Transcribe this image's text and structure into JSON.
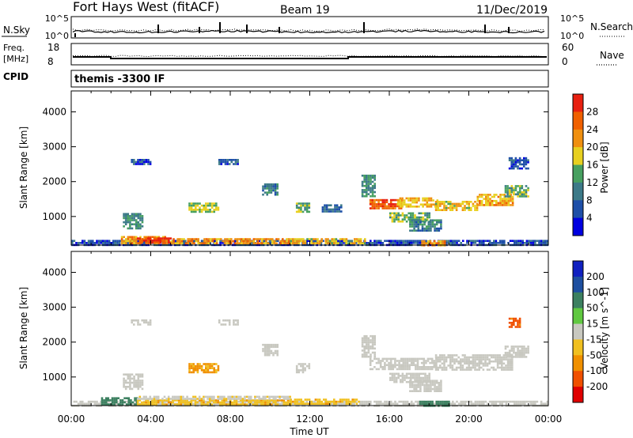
{
  "header": {
    "station": "Fort Hays West (fitACF)",
    "beam": "Beam 19",
    "date": "11/Dec/2019"
  },
  "aux_panels": {
    "nsky_label": "N.Sky",
    "nsky_ticks": [
      "10^5",
      "10^0"
    ],
    "nsearch_label": "N.Search",
    "nsearch_ticks": [
      "10^5",
      "10^0"
    ],
    "freq_label": "Freq.",
    "freq_unit": "[MHz]",
    "freq_ticks": [
      "18",
      "8"
    ],
    "nave_label": "Nave",
    "nave_ticks": [
      "60",
      "0"
    ],
    "cpid_label": "CPID",
    "cpid_value": "themis -3300 IF"
  },
  "colors": {
    "power_scale": [
      "#0000e0",
      "#1e4fa8",
      "#3c7a88",
      "#47a060",
      "#e8d020",
      "#f09010",
      "#f06000",
      "#e82010"
    ],
    "velocity_scale": [
      "#e00000",
      "#f05000",
      "#f09000",
      "#f0c020",
      "#c8c8c0",
      "#60c840",
      "#3c8060",
      "#1e4fa0",
      "#1020c0"
    ],
    "trace": "#000000"
  },
  "chart_data": [
    {
      "type": "heatmap",
      "name": "power",
      "ylabel": "Slant Range [km]",
      "yticks": [
        "1000",
        "2000",
        "3000",
        "4000"
      ],
      "ylim": [
        180,
        4600
      ],
      "colorbar_label": "Power [dB]",
      "colorbar_ticks": [
        "4",
        "8",
        "12",
        "16",
        "20",
        "24",
        "28"
      ],
      "colorbar_range": [
        0,
        32
      ],
      "regions": [
        {
          "t": [
            0.0,
            24.0
          ],
          "r": [
            180,
            330
          ],
          "v": 6
        },
        {
          "t": [
            2.5,
            4.8
          ],
          "r": [
            220,
            440
          ],
          "v": 22
        },
        {
          "t": [
            3.3,
            5.0
          ],
          "r": [
            230,
            400
          ],
          "v": 28
        },
        {
          "t": [
            5.0,
            11.0
          ],
          "r": [
            230,
            380
          ],
          "v": 22
        },
        {
          "t": [
            11.0,
            14.8
          ],
          "r": [
            220,
            380
          ],
          "v": 19
        },
        {
          "t": [
            2.6,
            3.6
          ],
          "r": [
            650,
            1100
          ],
          "v": 12
        },
        {
          "t": [
            5.9,
            7.4
          ],
          "r": [
            1150,
            1400
          ],
          "v": 16
        },
        {
          "t": [
            9.6,
            10.4
          ],
          "r": [
            1650,
            1950
          ],
          "v": 10
        },
        {
          "t": [
            11.3,
            12.0
          ],
          "r": [
            1150,
            1400
          ],
          "v": 14
        },
        {
          "t": [
            12.6,
            13.6
          ],
          "r": [
            1150,
            1350
          ],
          "v": 8
        },
        {
          "t": [
            14.6,
            15.3
          ],
          "r": [
            1600,
            2200
          ],
          "v": 12
        },
        {
          "t": [
            15.0,
            16.6
          ],
          "r": [
            1250,
            1500
          ],
          "v": 26
        },
        {
          "t": [
            16.4,
            18.4
          ],
          "r": [
            1300,
            1550
          ],
          "v": 20
        },
        {
          "t": [
            16.0,
            18.0
          ],
          "r": [
            880,
            1120
          ],
          "v": 14
        },
        {
          "t": [
            17.0,
            18.6
          ],
          "r": [
            620,
            920
          ],
          "v": 11
        },
        {
          "t": [
            18.3,
            20.4
          ],
          "r": [
            1200,
            1450
          ],
          "v": 19
        },
        {
          "t": [
            20.4,
            22.2
          ],
          "r": [
            1350,
            1650
          ],
          "v": 21
        },
        {
          "t": [
            21.8,
            23.0
          ],
          "r": [
            1550,
            1900
          ],
          "v": 14
        },
        {
          "t": [
            3.0,
            4.0
          ],
          "r": [
            2500,
            2650
          ],
          "v": 6
        },
        {
          "t": [
            7.4,
            8.4
          ],
          "r": [
            2500,
            2650
          ],
          "v": 6
        },
        {
          "t": [
            17.5,
            18.8
          ],
          "r": [
            180,
            320
          ],
          "v": 22
        },
        {
          "t": [
            22.0,
            23.0
          ],
          "r": [
            2350,
            2700
          ],
          "v": 6
        }
      ]
    },
    {
      "type": "heatmap",
      "name": "velocity",
      "ylabel": "Slant Range [km]",
      "yticks": [
        "1000",
        "2000",
        "3000",
        "4000"
      ],
      "ylim": [
        180,
        4600
      ],
      "xlabel": "Time UT",
      "xticks": [
        "00:00",
        "04:00",
        "08:00",
        "12:00",
        "16:00",
        "20:00",
        "00:00"
      ],
      "xlim": [
        0,
        24
      ],
      "colorbar_label": "Velocity [m s^-1]",
      "colorbar_ticks": [
        "200",
        "100",
        "50",
        "15",
        "-15",
        "-50",
        "-100",
        "-200"
      ],
      "colorbar_range": [
        -250,
        250
      ],
      "regions": [
        {
          "t": [
            0.0,
            24.0
          ],
          "r": [
            180,
            320
          ],
          "v": 0
        },
        {
          "t": [
            1.5,
            3.3
          ],
          "r": [
            220,
            420
          ],
          "v": 40
        },
        {
          "t": [
            3.3,
            11.0
          ],
          "r": [
            230,
            360
          ],
          "v": -25
        },
        {
          "t": [
            3.3,
            11.0
          ],
          "r": [
            360,
            460
          ],
          "v": -10
        },
        {
          "t": [
            11.0,
            14.5
          ],
          "r": [
            220,
            380
          ],
          "v": -25
        },
        {
          "t": [
            2.6,
            3.6
          ],
          "r": [
            650,
            1100
          ],
          "v": 0
        },
        {
          "t": [
            5.9,
            7.4
          ],
          "r": [
            1150,
            1400
          ],
          "v": -35
        },
        {
          "t": [
            9.6,
            10.4
          ],
          "r": [
            1650,
            1950
          ],
          "v": 0
        },
        {
          "t": [
            11.3,
            12.0
          ],
          "r": [
            1150,
            1400
          ],
          "v": 0
        },
        {
          "t": [
            14.6,
            15.3
          ],
          "r": [
            1600,
            2200
          ],
          "v": 0
        },
        {
          "t": [
            15.0,
            18.4
          ],
          "r": [
            1250,
            1550
          ],
          "v": 0
        },
        {
          "t": [
            16.0,
            18.0
          ],
          "r": [
            880,
            1120
          ],
          "v": 0
        },
        {
          "t": [
            17.0,
            18.6
          ],
          "r": [
            620,
            920
          ],
          "v": 0
        },
        {
          "t": [
            18.3,
            22.2
          ],
          "r": [
            1200,
            1650
          ],
          "v": 0
        },
        {
          "t": [
            21.8,
            23.0
          ],
          "r": [
            1550,
            1900
          ],
          "v": 0
        },
        {
          "t": [
            3.0,
            4.0
          ],
          "r": [
            2500,
            2650
          ],
          "v": 0
        },
        {
          "t": [
            7.4,
            8.4
          ],
          "r": [
            2500,
            2650
          ],
          "v": 0
        },
        {
          "t": [
            17.5,
            19.0
          ],
          "r": [
            180,
            320
          ],
          "v": 40
        },
        {
          "t": [
            22.0,
            22.6
          ],
          "r": [
            2450,
            2700
          ],
          "v": -80
        }
      ]
    }
  ]
}
